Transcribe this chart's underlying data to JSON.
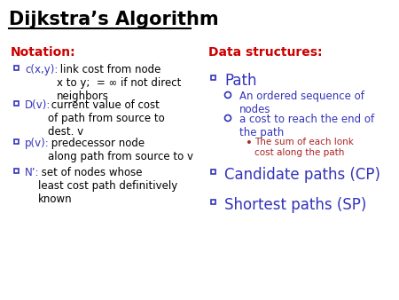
{
  "bg_color": "#ffffff",
  "title": "Dijkstra’s Algorithm",
  "title_color": "#000000",
  "title_fontsize": 15,
  "notation_header": "Notation:",
  "notation_header_color": "#cc0000",
  "ds_header": "Data structures:",
  "ds_header_color": "#cc0000",
  "left_items": [
    {
      "label": "c(x,y):",
      "rest": "link cost from node\nx to y;  = ∞ if not direct\nneighbors"
    },
    {
      "label": "D(v):",
      "rest": "current value of cost\nof path from source to\ndest. v"
    },
    {
      "label": "p(v):",
      "rest": "predecessor node\nalong path from source to v"
    },
    {
      "label": "N’:",
      "rest": "set of nodes whose\nleast cost path definitively\nknown"
    }
  ],
  "right_items": [
    {
      "level": 0,
      "text": "Path",
      "color": "#3333bb",
      "fontsize": 12
    },
    {
      "level": 1,
      "text": "An ordered sequence of\nnodes",
      "color": "#3333bb",
      "fontsize": 8.5
    },
    {
      "level": 1,
      "text": "a cost to reach the end of\nthe path",
      "color": "#3333bb",
      "fontsize": 8.5
    },
    {
      "level": 2,
      "text": "The sum of each lonk\ncost along the path",
      "color": "#aa2222",
      "fontsize": 7.5
    },
    {
      "level": 0,
      "text": "Candidate paths (CP)",
      "color": "#3333bb",
      "fontsize": 12
    },
    {
      "level": 0,
      "text": "Shortest paths (SP)",
      "color": "#3333bb",
      "fontsize": 12
    }
  ],
  "bullet_color": "#3333bb",
  "label_color": "#3333bb",
  "text_color": "#000000"
}
